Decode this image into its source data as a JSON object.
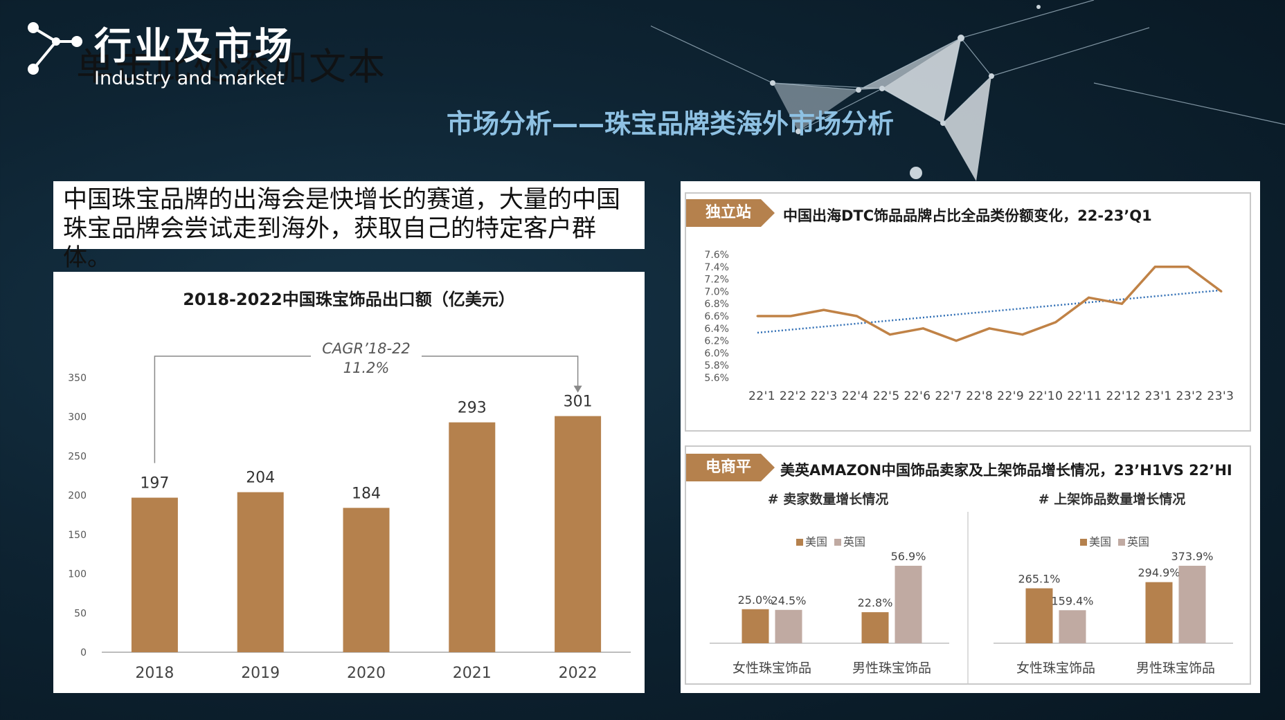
{
  "header": {
    "ghost_text": "单击此处添加文本",
    "title": "行业及市场",
    "title_en": "Industry and market",
    "subtitle": "市场分析——珠宝品牌类海外市场分析"
  },
  "intro_text": "中国珠宝品牌的出海会是快增长的赛道，大量的中国珠宝品牌会尝试走到海外，获取自己的特定客户群体。",
  "colors": {
    "bar": "#b5814d",
    "bar_uk": "#c0aaa2",
    "line": "#c08246",
    "trend": "#2e6db4",
    "accent": "#8ec1e3"
  },
  "chart_data": [
    {
      "type": "bar",
      "title": "2018-2022中国珠宝饰品出口额（亿美元）",
      "categories": [
        "2018",
        "2019",
        "2020",
        "2021",
        "2022"
      ],
      "values": [
        197,
        204,
        184,
        293,
        301
      ],
      "ylim": [
        0,
        350
      ],
      "yticks": [
        "0",
        "50",
        "100",
        "150",
        "200",
        "250",
        "300",
        "350"
      ],
      "annotation": {
        "line1": "CAGR’18-22",
        "line2": "11.2%"
      },
      "grid": false
    },
    {
      "type": "line",
      "tag": "独立站",
      "title": "中国出海DTC饰品品牌占比全品类份额变化，22-23’Q1",
      "categories": [
        "22'1",
        "22'2",
        "22'3",
        "22'4",
        "22'5",
        "22'6",
        "22'7",
        "22'8",
        "22'9",
        "22'10",
        "22'11",
        "22'12",
        "23'1",
        "23'2",
        "23'3"
      ],
      "values": [
        6.6,
        6.6,
        6.7,
        6.6,
        6.3,
        6.4,
        6.2,
        6.4,
        6.3,
        6.5,
        6.9,
        6.8,
        7.4,
        7.4,
        7.0
      ],
      "trend": [
        6.33,
        7.02
      ],
      "ylim": [
        5.6,
        7.6
      ],
      "yticks": [
        "5.6%",
        "5.8%",
        "6.0%",
        "6.2%",
        "6.4%",
        "6.6%",
        "6.8%",
        "7.0%",
        "7.2%",
        "7.4%",
        "7.6%"
      ],
      "x_axis_label_text": "22'1 22'2 22'3 22'4 22'5 22'6 22'7 22'8 22'9 22'10 22'11 22'12 23'1 23'2 23'3"
    },
    {
      "type": "bar",
      "tag": "电商平台",
      "title": "美英AMAZON中国饰品卖家及上架饰品增长情况，23’H1VS 22’HI",
      "subtitle": "# 卖家数量增长情况",
      "legend": [
        "美国",
        "英国"
      ],
      "categories": [
        "女性珠宝饰品",
        "男性珠宝饰品"
      ],
      "series": [
        {
          "name": "美国",
          "values": [
            25.0,
            22.8
          ],
          "labels": [
            "25.0%",
            "22.8%"
          ]
        },
        {
          "name": "英国",
          "values": [
            24.5,
            56.9
          ],
          "labels": [
            "24.5%",
            "56.9%"
          ]
        }
      ]
    },
    {
      "type": "bar",
      "subtitle": "# 上架饰品数量增长情况",
      "legend": [
        "美国",
        "英国"
      ],
      "categories": [
        "女性珠宝饰品",
        "男性珠宝饰品"
      ],
      "series": [
        {
          "name": "美国",
          "values": [
            265.1,
            294.9
          ],
          "labels": [
            "265.1%",
            "294.9%"
          ]
        },
        {
          "name": "英国",
          "values": [
            159.4,
            373.9
          ],
          "labels": [
            "159.4%",
            "373.9%"
          ]
        }
      ]
    }
  ]
}
